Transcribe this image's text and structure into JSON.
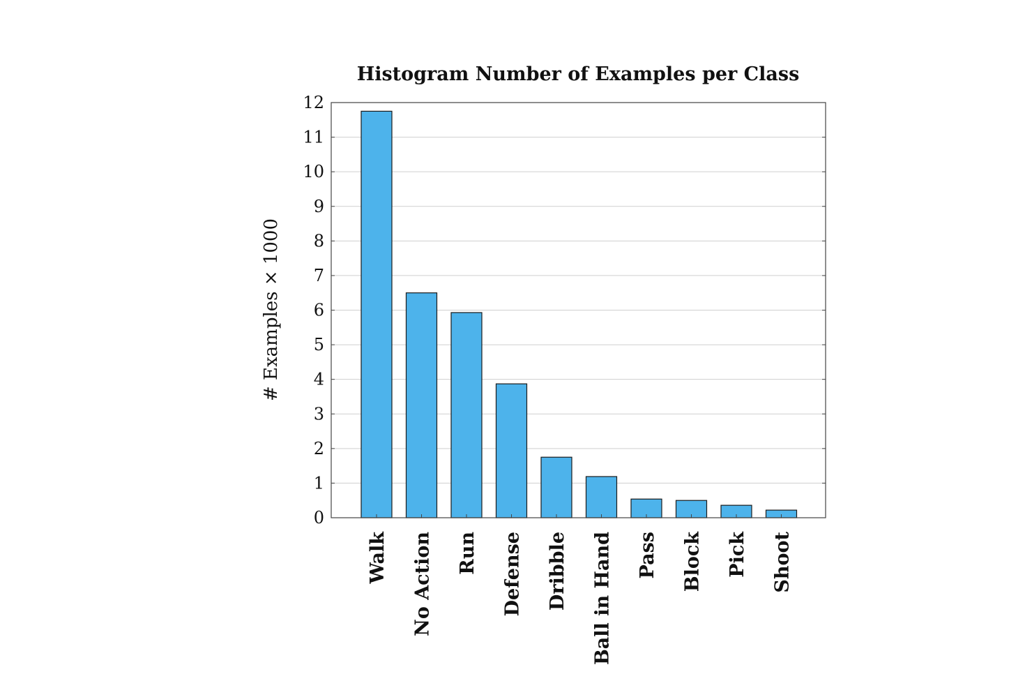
{
  "chart_data": {
    "type": "bar",
    "title": "Histogram Number of Examples per Class",
    "xlabel": "",
    "ylabel": "# Examples × 1000",
    "categories": [
      "Walk",
      "No Action",
      "Run",
      "Defense",
      "Dribble",
      "Ball in Hand",
      "Pass",
      "Block",
      "Pick",
      "Shoot"
    ],
    "values": [
      11.75,
      6.5,
      5.93,
      3.87,
      1.75,
      1.19,
      0.54,
      0.5,
      0.36,
      0.22
    ],
    "ylim": [
      0,
      12
    ],
    "yticks": [
      "0",
      "1",
      "2",
      "3",
      "4",
      "5",
      "6",
      "7",
      "8",
      "9",
      "10",
      "11",
      "12"
    ],
    "grid": "horizontal",
    "legend": "none",
    "colors": {
      "bar_fill": "#4db3eb",
      "bar_stroke": "#1a1a1a",
      "grid": "#cfcfcf",
      "axis": "#444444"
    }
  }
}
